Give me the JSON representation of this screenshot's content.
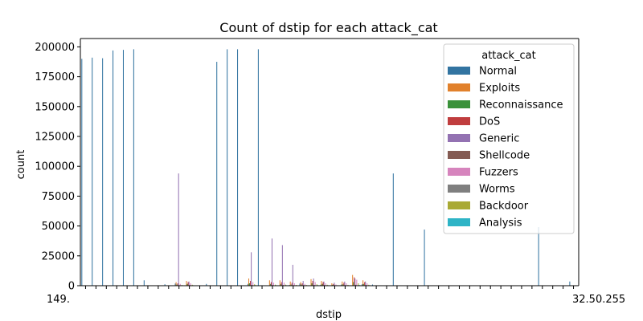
{
  "chart_data": {
    "type": "bar",
    "title": "Count of dstip for each attack_cat",
    "xlabel": "dstip",
    "ylabel": "count",
    "ylim": [
      0,
      207000
    ],
    "yticks": [
      0,
      25000,
      50000,
      75000,
      100000,
      125000,
      150000,
      175000,
      200000
    ],
    "ytick_labels": [
      "0",
      "25000",
      "50000",
      "75000",
      "100000",
      "125000",
      "150000",
      "175000",
      "200000"
    ],
    "grid": false,
    "legend": {
      "title": "attack_cat",
      "placement": "upper-right"
    },
    "n_categories": 48,
    "first_tick_label": "149.",
    "last_tick_label": "32.50.255",
    "series": [
      {
        "name": "Normal",
        "color": "#3274a1",
        "values": [
          190000,
          191000,
          190500,
          197000,
          197500,
          198000,
          4500,
          0,
          1200,
          1800,
          0,
          0,
          1500,
          187500,
          198000,
          198000,
          1500,
          198000,
          0,
          0,
          600,
          1800,
          0,
          800,
          0,
          1000,
          0,
          1300,
          1000,
          0,
          94000,
          0,
          0,
          47000,
          0,
          0,
          0,
          0,
          0,
          0,
          0,
          0,
          0,
          0,
          49000,
          0,
          0,
          3500
        ]
      },
      {
        "name": "Exploits",
        "color": "#e1812c",
        "values": [
          0,
          0,
          0,
          0,
          0,
          0,
          0,
          0,
          0,
          3000,
          4000,
          0,
          0,
          0,
          0,
          0,
          6000,
          0,
          4500,
          4500,
          3500,
          3000,
          5500,
          4000,
          2000,
          3500,
          9000,
          4500,
          0,
          0,
          0,
          0,
          0,
          0,
          0,
          0,
          0,
          0,
          0,
          0,
          0,
          0,
          0,
          0,
          0,
          0,
          0,
          0
        ]
      },
      {
        "name": "Reconnaissance",
        "color": "#3a923a",
        "values": [
          0,
          0,
          0,
          0,
          0,
          0,
          0,
          0,
          0,
          1000,
          1500,
          0,
          0,
          0,
          0,
          0,
          2000,
          0,
          1500,
          1500,
          1000,
          1000,
          2000,
          1500,
          800,
          1200,
          3000,
          1500,
          0,
          0,
          0,
          0,
          0,
          0,
          0,
          0,
          0,
          0,
          0,
          0,
          0,
          0,
          0,
          0,
          0,
          0,
          0,
          0
        ]
      },
      {
        "name": "DoS",
        "color": "#c03d3e",
        "values": [
          0,
          0,
          0,
          0,
          0,
          0,
          0,
          0,
          0,
          2000,
          3000,
          0,
          0,
          0,
          0,
          0,
          4000,
          0,
          3000,
          3000,
          2500,
          2000,
          4000,
          3000,
          1500,
          2500,
          7000,
          3000,
          0,
          0,
          0,
          0,
          0,
          0,
          0,
          0,
          0,
          0,
          0,
          0,
          0,
          0,
          0,
          0,
          0,
          0,
          0,
          0
        ]
      },
      {
        "name": "Generic",
        "color": "#9372b2",
        "values": [
          0,
          0,
          0,
          0,
          0,
          0,
          0,
          0,
          0,
          94000,
          3500,
          0,
          0,
          0,
          0,
          0,
          28000,
          0,
          39500,
          34000,
          17500,
          4000,
          6000,
          3500,
          2500,
          3500,
          6000,
          3500,
          0,
          0,
          0,
          0,
          0,
          0,
          0,
          0,
          0,
          0,
          0,
          0,
          0,
          0,
          0,
          0,
          0,
          0,
          0,
          0
        ]
      },
      {
        "name": "Shellcode",
        "color": "#845b53",
        "values": [
          0,
          0,
          0,
          0,
          0,
          0,
          0,
          0,
          0,
          400,
          500,
          0,
          0,
          0,
          0,
          0,
          600,
          0,
          500,
          500,
          400,
          400,
          600,
          500,
          300,
          400,
          800,
          500,
          0,
          0,
          0,
          0,
          0,
          0,
          0,
          0,
          0,
          0,
          0,
          0,
          0,
          0,
          0,
          0,
          0,
          0,
          0,
          0
        ]
      },
      {
        "name": "Fuzzers",
        "color": "#d684bd",
        "values": [
          0,
          0,
          0,
          0,
          0,
          0,
          0,
          0,
          0,
          1500,
          2000,
          0,
          0,
          0,
          0,
          0,
          3000,
          0,
          2500,
          2500,
          2000,
          1500,
          3000,
          2000,
          1000,
          2000,
          5000,
          2000,
          0,
          0,
          0,
          0,
          0,
          0,
          0,
          0,
          0,
          0,
          0,
          0,
          0,
          0,
          0,
          0,
          0,
          0,
          0,
          0
        ]
      },
      {
        "name": "Worms",
        "color": "#7f7f7f",
        "values": [
          0,
          0,
          0,
          0,
          0,
          0,
          0,
          0,
          0,
          100,
          150,
          0,
          0,
          0,
          0,
          0,
          200,
          0,
          150,
          150,
          100,
          100,
          200,
          150,
          80,
          120,
          250,
          150,
          0,
          0,
          0,
          0,
          0,
          0,
          0,
          0,
          0,
          0,
          0,
          0,
          0,
          0,
          0,
          0,
          0,
          0,
          0,
          0
        ]
      },
      {
        "name": "Backdoor",
        "color": "#a9aa35",
        "values": [
          0,
          0,
          0,
          0,
          0,
          0,
          0,
          0,
          0,
          600,
          800,
          0,
          0,
          0,
          0,
          0,
          1200,
          0,
          900,
          900,
          700,
          600,
          1200,
          800,
          400,
          700,
          2000,
          800,
          0,
          0,
          0,
          0,
          0,
          0,
          0,
          0,
          0,
          0,
          0,
          0,
          0,
          0,
          0,
          0,
          0,
          0,
          0,
          0
        ]
      },
      {
        "name": "Analysis",
        "color": "#2eb4c6",
        "values": [
          0,
          0,
          0,
          0,
          0,
          0,
          0,
          0,
          0,
          300,
          400,
          0,
          0,
          0,
          0,
          0,
          500,
          0,
          400,
          400,
          300,
          300,
          500,
          400,
          200,
          300,
          700,
          400,
          0,
          0,
          0,
          0,
          0,
          0,
          0,
          0,
          0,
          0,
          0,
          0,
          0,
          0,
          0,
          0,
          0,
          0,
          0,
          0
        ]
      }
    ]
  }
}
